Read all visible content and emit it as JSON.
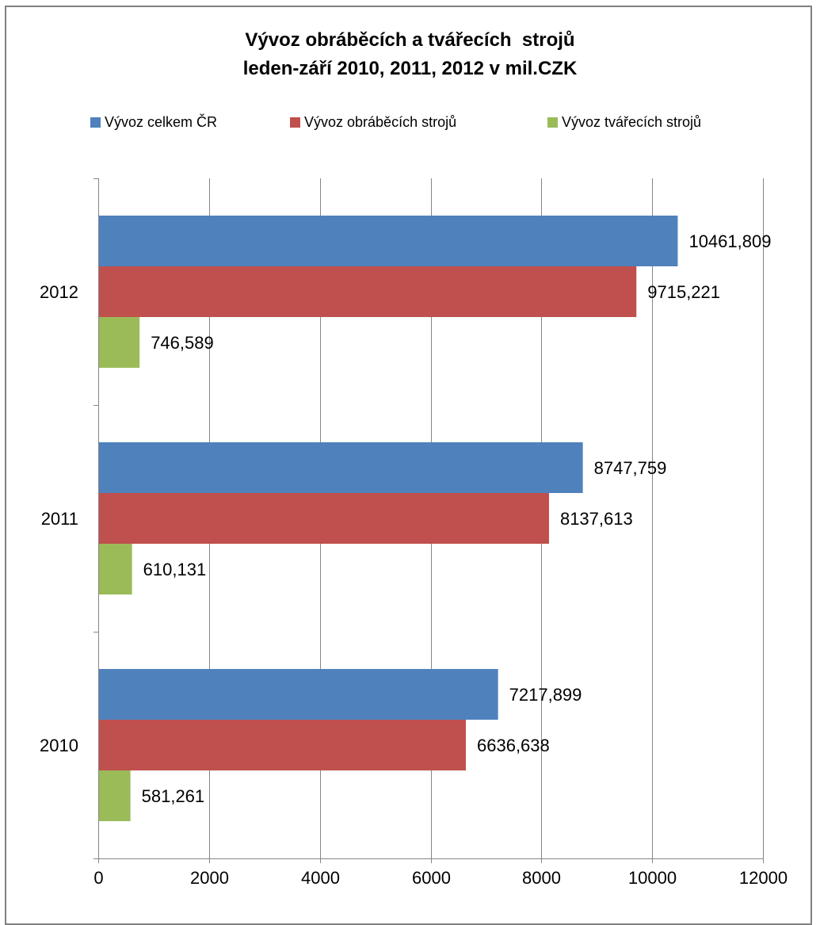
{
  "chart_data": {
    "type": "bar",
    "orientation": "horizontal",
    "title_lines": [
      "Vývoz obráběcích a tvářecích  strojů",
      "leden-září 2010, 2011, 2012 v mil.CZK"
    ],
    "categories": [
      "2012",
      "2011",
      "2010"
    ],
    "series": [
      {
        "name": "Vývoz celkem ČR",
        "color": "#4f81bd",
        "values": [
          10461.809,
          8747.759,
          7217.899
        ],
        "labels": [
          "10461,809",
          "8747,759",
          "7217,899"
        ]
      },
      {
        "name": "Vývoz obráběcích strojů",
        "color": "#c0504d",
        "values": [
          9715.221,
          8137.613,
          6636.638
        ],
        "labels": [
          "9715,221",
          "8137,613",
          "6636,638"
        ]
      },
      {
        "name": "Vývoz tvářecích strojů",
        "color": "#9bbb59",
        "values": [
          746.589,
          610.131,
          581.261
        ],
        "labels": [
          "746,589",
          "610,131",
          "581,261"
        ]
      }
    ],
    "xlim": [
      0,
      12000
    ],
    "xticks": [
      0,
      2000,
      4000,
      6000,
      8000,
      10000,
      12000
    ],
    "xtick_labels": [
      "0",
      "2000",
      "4000",
      "6000",
      "8000",
      "10000",
      "12000"
    ],
    "grid": "vertical",
    "legend_position": "top"
  }
}
